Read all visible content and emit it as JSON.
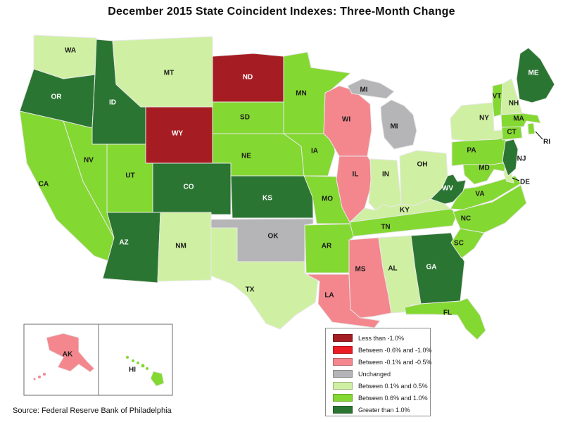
{
  "title": "December 2015 State Coincident Indexes: Three-Month Change",
  "source_note": "Source: Federal Reserve Bank of Philadelphia",
  "legend": {
    "items": [
      {
        "label": "Less than -1.0%",
        "color": "#A51D22"
      },
      {
        "label": "Between -0.6% and -1.0%",
        "color": "#EC1C24"
      },
      {
        "label": "Between -0.1% and -0.5%",
        "color": "#F4878E"
      },
      {
        "label": "Unchanged",
        "color": "#B5B4B6"
      },
      {
        "label": "Between 0.1% and 0.5%",
        "color": "#CFF0A2"
      },
      {
        "label": "Between 0.6% and 1.0%",
        "color": "#84D832"
      },
      {
        "label": "Greater than 1.0%",
        "color": "#2B7532"
      }
    ]
  },
  "map_data": {
    "type": "choropleth",
    "region": "United States",
    "metric": "three-month change in state coincident index",
    "states": [
      {
        "abbr": "WA",
        "category": "Between 0.1% and 0.5%"
      },
      {
        "abbr": "OR",
        "category": "Greater than 1.0%",
        "label_color": "white"
      },
      {
        "abbr": "CA",
        "category": "Between 0.6% and 1.0%"
      },
      {
        "abbr": "NV",
        "category": "Between 0.6% and 1.0%"
      },
      {
        "abbr": "ID",
        "category": "Greater than 1.0%",
        "label_color": "white"
      },
      {
        "abbr": "MT",
        "category": "Between 0.1% and 0.5%"
      },
      {
        "abbr": "WY",
        "category": "Less than -1.0%",
        "label_color": "white"
      },
      {
        "abbr": "UT",
        "category": "Between 0.6% and 1.0%"
      },
      {
        "abbr": "CO",
        "category": "Greater than 1.0%",
        "label_color": "white"
      },
      {
        "abbr": "AZ",
        "category": "Greater than 1.0%",
        "label_color": "white"
      },
      {
        "abbr": "NM",
        "category": "Between 0.1% and 0.5%"
      },
      {
        "abbr": "ND",
        "category": "Less than -1.0%",
        "label_color": "white"
      },
      {
        "abbr": "SD",
        "category": "Between 0.6% and 1.0%"
      },
      {
        "abbr": "NE",
        "category": "Between 0.6% and 1.0%"
      },
      {
        "abbr": "KS",
        "category": "Greater than 1.0%",
        "label_color": "white"
      },
      {
        "abbr": "OK",
        "category": "Unchanged"
      },
      {
        "abbr": "TX",
        "category": "Between 0.1% and 0.5%"
      },
      {
        "abbr": "MN",
        "category": "Between 0.6% and 1.0%"
      },
      {
        "abbr": "IA",
        "category": "Between 0.6% and 1.0%"
      },
      {
        "abbr": "MO",
        "category": "Between 0.6% and 1.0%"
      },
      {
        "abbr": "AR",
        "category": "Between 0.6% and 1.0%"
      },
      {
        "abbr": "LA",
        "category": "Between -0.1% and -0.5%"
      },
      {
        "abbr": "WI",
        "category": "Between -0.1% and -0.5%"
      },
      {
        "abbr": "IL",
        "category": "Between -0.1% and -0.5%"
      },
      {
        "abbr": "IN",
        "category": "Between 0.1% and 0.5%"
      },
      {
        "abbr": "OH",
        "category": "Between 0.1% and 0.5%"
      },
      {
        "abbr": "MI",
        "category": "Unchanged"
      },
      {
        "abbr": "KY",
        "category": "Between 0.1% and 0.5%"
      },
      {
        "abbr": "TN",
        "category": "Between 0.6% and 1.0%"
      },
      {
        "abbr": "MS",
        "category": "Between -0.1% and -0.5%"
      },
      {
        "abbr": "AL",
        "category": "Between 0.1% and 0.5%"
      },
      {
        "abbr": "GA",
        "category": "Greater than 1.0%",
        "label_color": "white"
      },
      {
        "abbr": "FL",
        "category": "Between 0.6% and 1.0%"
      },
      {
        "abbr": "SC",
        "category": "Between 0.6% and 1.0%"
      },
      {
        "abbr": "NC",
        "category": "Between 0.6% and 1.0%"
      },
      {
        "abbr": "VA",
        "category": "Between 0.6% and 1.0%"
      },
      {
        "abbr": "WV",
        "category": "Greater than 1.0%",
        "label_color": "white"
      },
      {
        "abbr": "MD",
        "category": "Between 0.6% and 1.0%"
      },
      {
        "abbr": "DE",
        "category": "Between 0.1% and 0.5%"
      },
      {
        "abbr": "PA",
        "category": "Between 0.6% and 1.0%"
      },
      {
        "abbr": "NJ",
        "category": "Greater than 1.0%"
      },
      {
        "abbr": "NY",
        "category": "Between 0.1% and 0.5%"
      },
      {
        "abbr": "CT",
        "category": "Between 0.6% and 1.0%"
      },
      {
        "abbr": "RI",
        "category": "Between 0.6% and 1.0%"
      },
      {
        "abbr": "MA",
        "category": "Between 0.6% and 1.0%"
      },
      {
        "abbr": "VT",
        "category": "Between 0.6% and 1.0%"
      },
      {
        "abbr": "NH",
        "category": "Between 0.1% and 0.5%"
      },
      {
        "abbr": "ME",
        "category": "Greater than 1.0%",
        "label_color": "white"
      },
      {
        "abbr": "AK",
        "category": "Between -0.1% and -0.5%"
      },
      {
        "abbr": "HI",
        "category": "Between 0.6% and 1.0%"
      }
    ]
  }
}
